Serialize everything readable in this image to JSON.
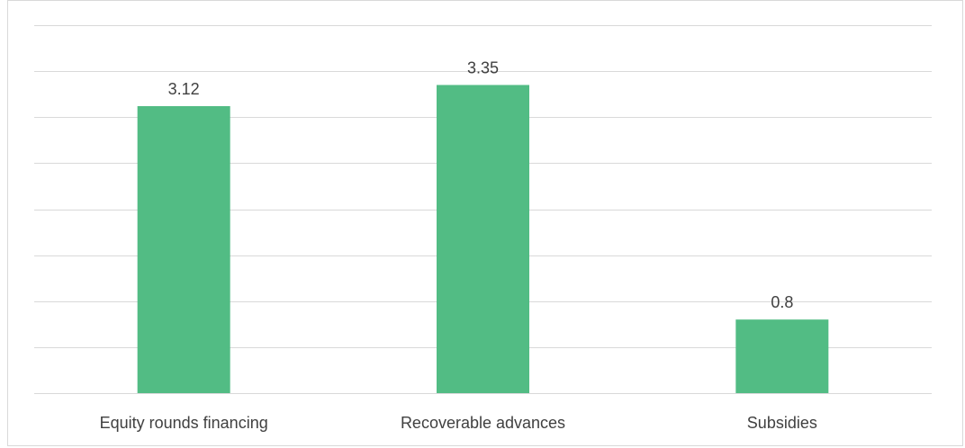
{
  "chart_data": {
    "type": "bar",
    "categories": [
      "Equity rounds financing",
      "Recoverable advances",
      "Subsidies"
    ],
    "values": [
      3.12,
      3.35,
      0.8
    ],
    "data_labels": [
      "3.12",
      "3.35",
      "0.8"
    ],
    "title": "",
    "xlabel": "",
    "ylabel": "",
    "ylim": [
      0,
      4
    ],
    "gridlines": true,
    "legend": "none",
    "bar_color": "#52bc84"
  }
}
